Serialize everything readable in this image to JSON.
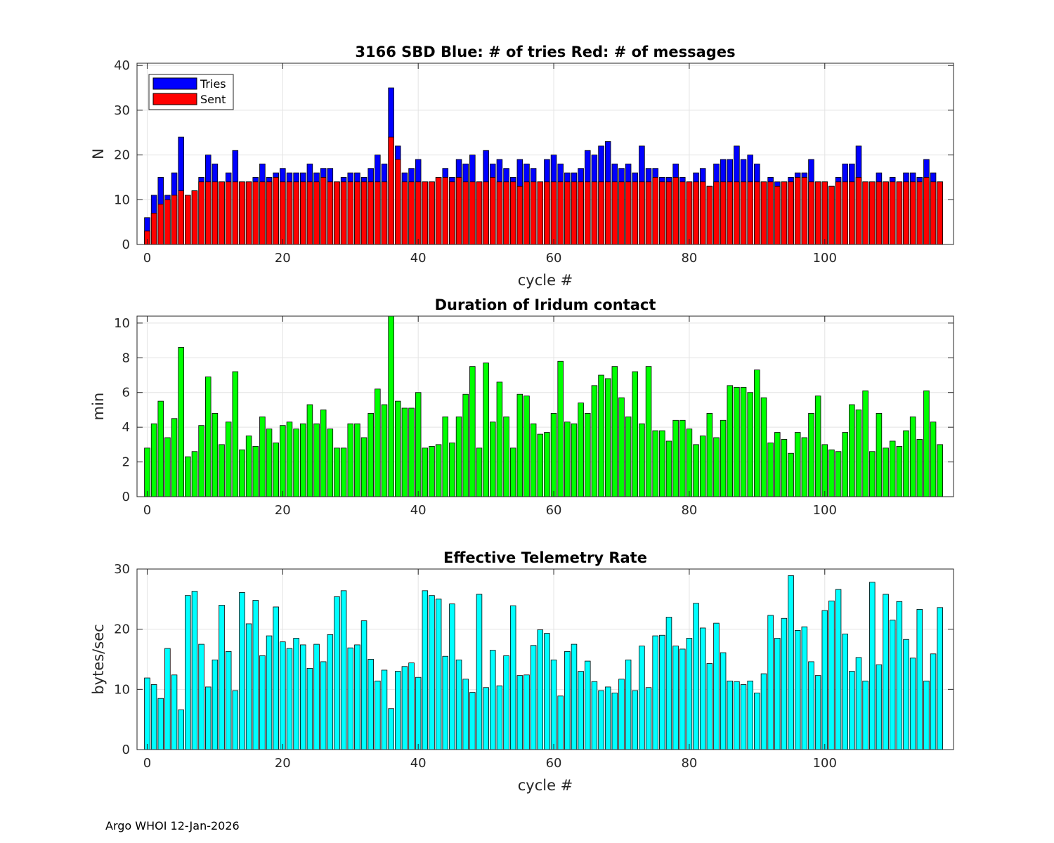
{
  "footer": "Argo WHOI 12-Jan-2026",
  "chart_data": [
    {
      "type": "bar",
      "title": "3166 SBD  Blue: # of tries   Red: # of messages",
      "xlabel": "cycle #",
      "ylabel": "N",
      "xlim": [
        -1.5,
        119
      ],
      "ylim": [
        0,
        40.5
      ],
      "xticks": [
        0,
        20,
        40,
        60,
        80,
        100
      ],
      "yticks": [
        0,
        10,
        20,
        30,
        40
      ],
      "grid": true,
      "legend": {
        "position": "top-left",
        "entries": [
          "Tries",
          "Sent"
        ]
      },
      "colors": {
        "Tries": "#0000ff",
        "Sent": "#ff0000"
      },
      "x_start": 0,
      "series": [
        {
          "name": "Tries",
          "values": [
            6,
            11,
            15,
            11,
            16,
            24,
            11,
            12,
            15,
            20,
            18,
            14,
            16,
            21,
            14,
            14,
            15,
            18,
            15,
            16,
            17,
            16,
            16,
            16,
            18,
            16,
            17,
            17,
            14,
            15,
            16,
            16,
            15,
            17,
            20,
            18,
            35,
            22,
            16,
            17,
            19,
            14,
            14,
            15,
            17,
            15,
            19,
            18,
            20,
            14,
            21,
            18,
            19,
            17,
            15,
            19,
            18,
            17,
            14,
            19,
            20,
            18,
            16,
            16,
            17,
            21,
            20,
            22,
            23,
            18,
            17,
            18,
            16,
            22,
            17,
            17,
            15,
            15,
            18,
            15,
            14,
            16,
            17,
            13,
            18,
            19,
            19,
            22,
            19,
            20,
            18,
            14,
            15,
            14,
            14,
            15,
            16,
            16,
            19,
            14,
            14,
            13,
            15,
            18,
            18,
            22,
            14,
            14,
            16,
            14,
            15,
            14,
            16,
            16,
            15,
            19,
            16,
            14
          ]
        },
        {
          "name": "Sent",
          "values": [
            3,
            7,
            9,
            10,
            11,
            12,
            11,
            12,
            14,
            14,
            14,
            14,
            14,
            14,
            14,
            14,
            14,
            14,
            14,
            15,
            14,
            14,
            14,
            14,
            14,
            14,
            15,
            14,
            14,
            14,
            14,
            14,
            14,
            14,
            14,
            14,
            24,
            19,
            14,
            14,
            14,
            14,
            14,
            15,
            15,
            14,
            15,
            14,
            14,
            14,
            14,
            15,
            14,
            14,
            14,
            13,
            14,
            14,
            14,
            14,
            14,
            14,
            14,
            14,
            14,
            14,
            14,
            14,
            14,
            14,
            14,
            14,
            14,
            14,
            14,
            15,
            14,
            14,
            15,
            14,
            14,
            14,
            14,
            13,
            14,
            14,
            14,
            14,
            14,
            14,
            14,
            14,
            14,
            13,
            14,
            14,
            15,
            15,
            14,
            14,
            14,
            13,
            14,
            14,
            14,
            15,
            14,
            14,
            14,
            14,
            14,
            14,
            14,
            14,
            14,
            15,
            14,
            14
          ]
        }
      ]
    },
    {
      "type": "bar",
      "title": "Duration of Iridum contact",
      "xlabel": "",
      "ylabel": "min",
      "xlim": [
        -1.5,
        119
      ],
      "ylim": [
        0,
        10.4
      ],
      "xticks": [
        0,
        20,
        40,
        60,
        80,
        100
      ],
      "yticks": [
        0,
        2,
        4,
        6,
        8,
        10
      ],
      "grid": true,
      "colors": {
        "bar": "#00ff00"
      },
      "x_start": 0,
      "values": [
        2.8,
        4.2,
        5.5,
        3.4,
        4.5,
        8.6,
        2.3,
        2.6,
        4.1,
        6.9,
        4.8,
        3.0,
        4.3,
        7.2,
        2.7,
        3.5,
        2.9,
        4.6,
        3.9,
        3.1,
        4.1,
        4.3,
        3.9,
        4.2,
        5.3,
        4.2,
        5.0,
        3.9,
        2.8,
        2.8,
        4.2,
        4.2,
        3.4,
        4.8,
        6.2,
        5.3,
        10.4,
        5.5,
        5.1,
        5.1,
        6.0,
        2.8,
        2.9,
        3.0,
        4.6,
        3.1,
        4.6,
        5.9,
        7.5,
        2.8,
        7.7,
        4.3,
        6.6,
        4.6,
        2.8,
        5.9,
        5.8,
        4.2,
        3.6,
        3.7,
        4.8,
        7.8,
        4.3,
        4.2,
        5.4,
        4.8,
        6.4,
        7.0,
        6.8,
        7.5,
        5.7,
        4.6,
        7.2,
        4.2,
        7.5,
        3.8,
        3.8,
        3.2,
        4.4,
        4.4,
        3.9,
        3.0,
        3.5,
        4.8,
        3.4,
        4.4,
        6.4,
        6.3,
        6.3,
        6.0,
        7.3,
        5.7,
        3.1,
        3.7,
        3.3,
        2.5,
        3.7,
        3.4,
        4.8,
        5.8,
        3.0,
        2.7,
        2.6,
        3.7,
        5.3,
        5.0,
        6.1,
        2.6,
        4.8,
        2.8,
        3.2,
        2.9,
        3.8,
        4.6,
        3.3,
        6.1,
        4.3,
        3.0
      ]
    },
    {
      "type": "bar",
      "title": "Effective Telemetry Rate",
      "xlabel": "cycle #",
      "ylabel": "bytes/sec",
      "xlim": [
        -1.5,
        119
      ],
      "ylim": [
        0,
        30
      ],
      "xticks": [
        0,
        20,
        40,
        60,
        80,
        100
      ],
      "yticks": [
        0,
        10,
        20,
        30
      ],
      "grid": true,
      "colors": {
        "bar": "#00ffff"
      },
      "x_start": 0,
      "values": [
        11.9,
        10.8,
        8.5,
        16.8,
        12.4,
        6.6,
        25.6,
        26.3,
        17.5,
        10.4,
        14.9,
        24.0,
        16.3,
        9.8,
        26.1,
        20.9,
        24.8,
        15.6,
        18.9,
        23.7,
        17.9,
        16.8,
        18.5,
        17.4,
        13.5,
        17.5,
        14.6,
        19.1,
        25.4,
        26.4,
        16.9,
        17.4,
        21.4,
        15.0,
        11.4,
        13.2,
        6.8,
        13.0,
        13.8,
        14.4,
        12.0,
        26.4,
        25.6,
        25.0,
        15.5,
        24.2,
        14.9,
        11.7,
        9.5,
        25.8,
        10.3,
        16.5,
        10.6,
        15.6,
        23.9,
        12.3,
        12.4,
        17.3,
        19.9,
        19.3,
        14.9,
        8.9,
        16.3,
        17.5,
        13.0,
        14.7,
        11.3,
        9.8,
        10.4,
        9.4,
        11.7,
        14.9,
        9.8,
        17.2,
        10.3,
        18.9,
        19.0,
        22.0,
        17.2,
        16.7,
        18.5,
        24.3,
        20.2,
        14.3,
        21.0,
        16.1,
        11.4,
        11.3,
        10.8,
        11.4,
        9.4,
        12.6,
        22.3,
        18.5,
        21.8,
        28.9,
        19.8,
        20.4,
        14.6,
        12.3,
        23.1,
        24.7,
        26.6,
        19.2,
        13.0,
        15.3,
        11.4,
        27.8,
        14.1,
        25.8,
        21.5,
        24.6,
        18.3,
        15.2,
        23.3,
        11.4,
        15.9,
        23.6
      ]
    }
  ]
}
